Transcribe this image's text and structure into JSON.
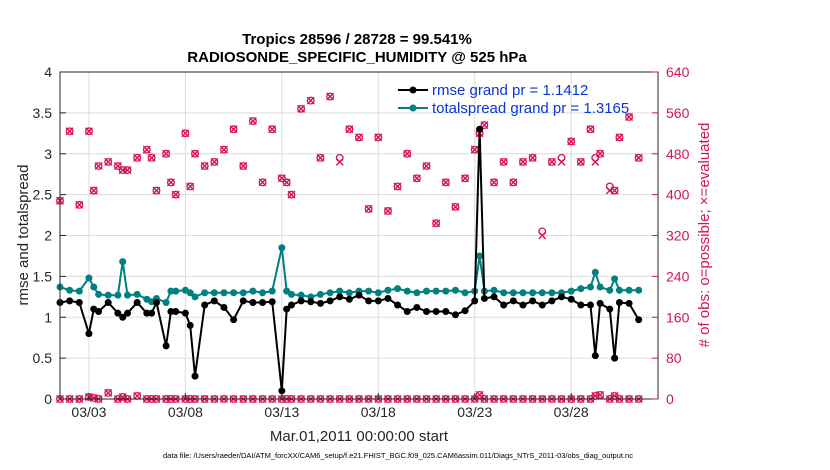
{
  "chart_data": {
    "type": "line",
    "title": "Tropics 28596 / 28728 = 99.541%",
    "subtitle": "RADIOSONDE_SPECIFIC_HUMIDITY @ 525 hPa",
    "ylabel": "rmse and totalspread",
    "y2label": "# of obs: o=possible; ×=evaluated",
    "xlabel": "Mar.01,2011 00:00:00 start",
    "footnote": "data file: /Users/raeder/DAI/ATM_forcXX/CAM6_setup/f.e21.FHIST_BGC.f09_025.CAM6assim.011/Diags_NTrS_2011-03/obs_diag_output.nc",
    "xlim": [
      1.5,
      32.5
    ],
    "ylim": [
      0,
      4
    ],
    "y2lim": [
      0,
      640
    ],
    "x_ticks": [
      3,
      8,
      13,
      18,
      23,
      28
    ],
    "x_tick_labels": [
      "03/03",
      "03/08",
      "03/13",
      "03/18",
      "03/23",
      "03/28"
    ],
    "y_ticks": [
      0,
      0.5,
      1,
      1.5,
      2,
      2.5,
      3,
      3.5,
      4
    ],
    "y_tick_labels": [
      "0",
      "0.5",
      "1",
      "1.5",
      "2",
      "2.5",
      "3",
      "3.5",
      "4"
    ],
    "y2_ticks": [
      0,
      80,
      160,
      240,
      320,
      400,
      480,
      560,
      640
    ],
    "y2_tick_labels": [
      "0",
      "80",
      "160",
      "240",
      "320",
      "400",
      "480",
      "560",
      "640"
    ],
    "x": [
      1.5,
      2,
      2.5,
      3,
      3.25,
      3.5,
      4,
      4.5,
      4.75,
      5,
      5.5,
      6,
      6.25,
      6.5,
      7,
      7.25,
      7.5,
      8,
      8.25,
      8.5,
      9,
      9.5,
      10,
      10.5,
      11,
      11.5,
      12,
      12.5,
      13,
      13.25,
      13.5,
      14,
      14.5,
      15,
      15.5,
      16,
      16.5,
      17,
      17.5,
      18,
      18.5,
      19,
      19.5,
      20,
      20.5,
      21,
      21.5,
      22,
      22.5,
      23,
      23.25,
      23.5,
      24,
      24.5,
      25,
      25.5,
      26,
      26.5,
      27,
      27.5,
      28,
      28.5,
      29,
      29.25,
      29.5,
      30,
      30.25,
      30.5,
      31,
      31.5
    ],
    "series": [
      {
        "name": "rmse",
        "legend": "rmse grand pr = 1.1412",
        "color": "#000000",
        "values": [
          1.18,
          1.2,
          1.18,
          0.8,
          1.1,
          1.07,
          1.18,
          1.05,
          1.0,
          1.05,
          1.18,
          1.05,
          1.05,
          1.18,
          0.65,
          1.07,
          1.07,
          1.05,
          0.9,
          0.28,
          1.15,
          1.2,
          1.12,
          0.97,
          1.2,
          1.18,
          1.18,
          1.19,
          0.1,
          1.1,
          1.15,
          1.2,
          1.19,
          1.17,
          1.2,
          1.25,
          1.22,
          1.27,
          1.2,
          1.2,
          1.23,
          1.15,
          1.07,
          1.12,
          1.07,
          1.07,
          1.07,
          1.03,
          1.08,
          1.2,
          3.3,
          1.23,
          1.25,
          1.15,
          1.2,
          1.15,
          1.2,
          1.15,
          1.2,
          1.25,
          1.22,
          1.15,
          1.15,
          0.53,
          1.17,
          1.1,
          0.5,
          1.18,
          1.17,
          0.97
        ]
      },
      {
        "name": "totalspread",
        "legend": "totalspread grand pr = 1.3165",
        "color": "#008080",
        "values": [
          1.37,
          1.33,
          1.32,
          1.48,
          1.37,
          1.28,
          1.27,
          1.27,
          1.68,
          1.27,
          1.28,
          1.22,
          1.19,
          1.23,
          1.18,
          1.32,
          1.32,
          1.33,
          1.3,
          1.25,
          1.3,
          1.3,
          1.3,
          1.3,
          1.3,
          1.32,
          1.3,
          1.32,
          1.85,
          1.32,
          1.28,
          1.27,
          1.25,
          1.28,
          1.3,
          1.32,
          1.3,
          1.32,
          1.32,
          1.3,
          1.33,
          1.35,
          1.32,
          1.3,
          1.32,
          1.32,
          1.32,
          1.33,
          1.3,
          1.32,
          1.75,
          1.32,
          1.33,
          1.3,
          1.3,
          1.3,
          1.3,
          1.3,
          1.3,
          1.3,
          1.32,
          1.35,
          1.37,
          1.55,
          1.37,
          1.33,
          1.47,
          1.33,
          1.33,
          1.33
        ]
      }
    ],
    "obs_possible": [
      388,
      524,
      380,
      524,
      408,
      456,
      464,
      456,
      448,
      448,
      472,
      488,
      472,
      408,
      480,
      424,
      400,
      520,
      416,
      480,
      456,
      464,
      488,
      528,
      456,
      544,
      424,
      528,
      432,
      424,
      400,
      568,
      584,
      472,
      592,
      472,
      528,
      512,
      372,
      512,
      368,
      416,
      480,
      432,
      456,
      344,
      424,
      376,
      432,
      488,
      520,
      536,
      424,
      464,
      424,
      464,
      472,
      328,
      464,
      472,
      504,
      464,
      528,
      472,
      480,
      416,
      408,
      512,
      552,
      472
    ],
    "obs_evaluated": [
      388,
      524,
      380,
      524,
      408,
      456,
      464,
      456,
      448,
      448,
      472,
      488,
      472,
      408,
      480,
      424,
      400,
      520,
      416,
      480,
      456,
      464,
      488,
      528,
      456,
      544,
      424,
      528,
      432,
      424,
      400,
      568,
      584,
      472,
      592,
      464,
      528,
      512,
      372,
      512,
      368,
      416,
      480,
      432,
      456,
      344,
      424,
      376,
      432,
      488,
      520,
      536,
      424,
      464,
      424,
      464,
      472,
      320,
      464,
      464,
      504,
      464,
      528,
      464,
      480,
      408,
      408,
      512,
      552,
      472
    ],
    "obs_bottom": [
      0,
      0,
      0,
      4,
      2,
      0,
      12,
      0,
      4,
      0,
      6,
      0,
      0,
      0,
      0,
      0,
      0,
      0,
      0,
      0,
      0,
      0,
      0,
      0,
      0,
      0,
      0,
      0,
      0,
      0,
      0,
      0,
      0,
      0,
      0,
      0,
      0,
      0,
      0,
      0,
      0,
      0,
      0,
      0,
      0,
      0,
      0,
      0,
      0,
      0,
      8,
      0,
      0,
      0,
      0,
      0,
      0,
      0,
      0,
      0,
      0,
      0,
      0,
      6,
      8,
      0,
      6,
      0,
      0,
      0
    ],
    "obs_color": "#d4145a",
    "legend_position": "top-right"
  }
}
